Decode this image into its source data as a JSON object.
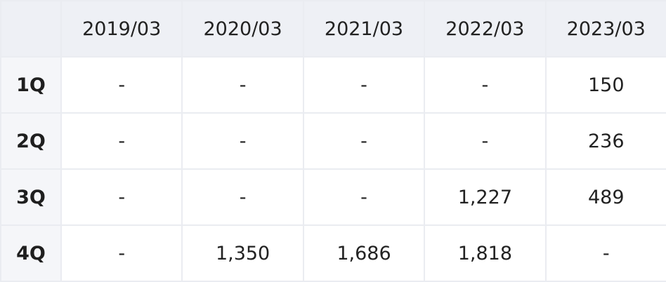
{
  "table": {
    "columns": [
      "2019/03",
      "2020/03",
      "2021/03",
      "2022/03",
      "2023/03"
    ],
    "rows": [
      {
        "label": "1Q",
        "cells": [
          "-",
          "-",
          "-",
          "-",
          "150"
        ]
      },
      {
        "label": "2Q",
        "cells": [
          "-",
          "-",
          "-",
          "-",
          "236"
        ]
      },
      {
        "label": "3Q",
        "cells": [
          "-",
          "-",
          "-",
          "1,227",
          "489"
        ]
      },
      {
        "label": "4Q",
        "cells": [
          "-",
          "1,350",
          "1,686",
          "1,818",
          "-"
        ]
      }
    ]
  }
}
